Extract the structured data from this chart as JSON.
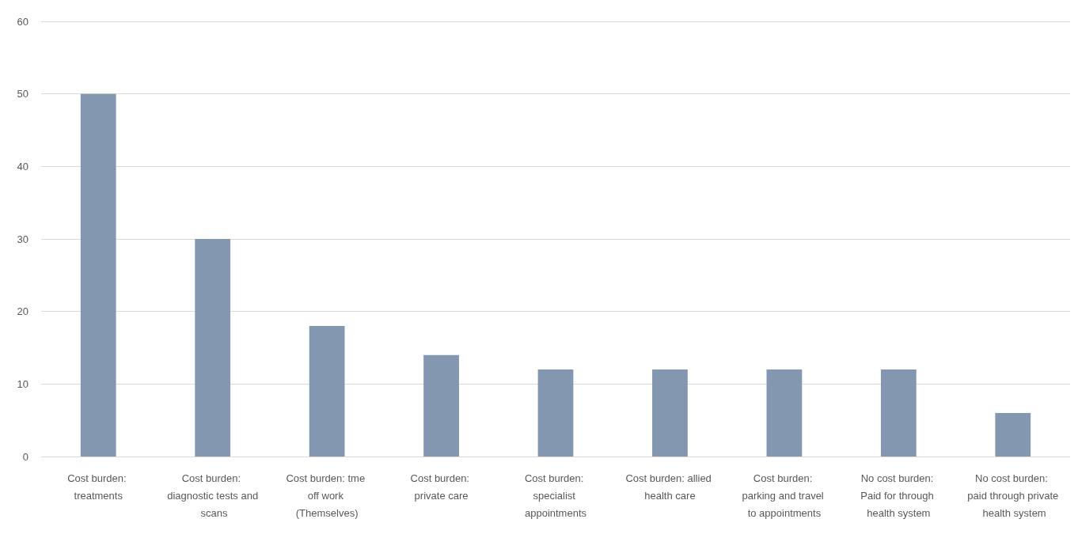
{
  "chart_data": {
    "type": "bar",
    "categories": [
      "Cost burden: treatments",
      "Cost burden: diagnostic tests and scans",
      "Cost burden: tme off work (Themselves)",
      "Cost burden: private care",
      "Cost burden: specialist appointments",
      "Cost burden: allied health care",
      "Cost burden: parking and travel to appointments",
      "No cost burden: Paid for through health system",
      "No cost burden: paid through private health system"
    ],
    "values": [
      50,
      30,
      18,
      14,
      12,
      12,
      12,
      12,
      6
    ],
    "color": "#8497b0",
    "ylim": [
      0,
      60
    ],
    "yticks": [
      0,
      10,
      20,
      30,
      40,
      50,
      60
    ],
    "grid": "y"
  }
}
